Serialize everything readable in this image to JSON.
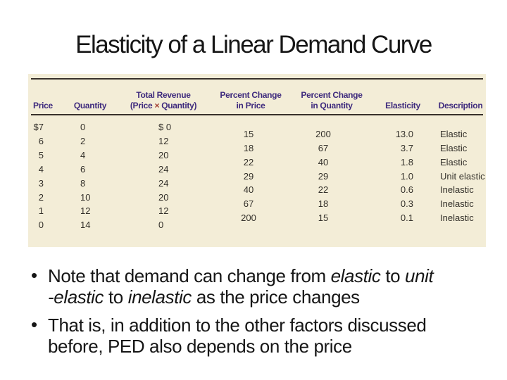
{
  "title": "Elasticity of a Linear Demand Curve",
  "bullet_char": "•",
  "colors": {
    "panel_bg": "#f3edd7",
    "header_text": "#3e2a7d",
    "times_sign": "#a03a2e",
    "rule": "#38312a",
    "data_text": "#33302a",
    "body_text": "#161616"
  },
  "table": {
    "headers": {
      "price": "Price",
      "quantity": "Quantity",
      "total_revenue_line1": "Total Revenue",
      "total_revenue_line2_pre": "(Price ",
      "total_revenue_times": "×",
      "total_revenue_line2_post": " Quantity)",
      "pct_price_line1": "Percent Change",
      "pct_price_line2": "in Price",
      "pct_qty_line1": "Percent Change",
      "pct_qty_line2": "in Quantity",
      "elasticity": "Elasticity",
      "description": "Description"
    },
    "price": [
      "$7",
      "6",
      "5",
      "4",
      "3",
      "2",
      "1",
      "0"
    ],
    "quantity": [
      "0",
      "2",
      "4",
      "6",
      "8",
      "10",
      "12",
      "14"
    ],
    "total_revenue": [
      "$ 0",
      "12",
      "20",
      "24",
      "24",
      "20",
      "12",
      "0"
    ],
    "pct_change_price": [
      "15",
      "18",
      "22",
      "29",
      "40",
      "67",
      "200"
    ],
    "pct_change_quantity": [
      "200",
      "67",
      "40",
      "29",
      "22",
      "18",
      "15"
    ],
    "elasticity": [
      "13.0",
      "3.7",
      "1.8",
      "1.0",
      "0.6",
      "0.3",
      "0.1"
    ],
    "description": [
      "Elastic",
      "Elastic",
      "Elastic",
      "Unit elastic",
      "Inelastic",
      "Inelastic",
      "Inelastic"
    ]
  },
  "bullets": [
    {
      "parts": [
        {
          "t": "Note that demand can change from "
        },
        {
          "t": "elastic",
          "i": true
        },
        {
          "t": " to "
        },
        {
          "t": "unit",
          "i": true
        },
        {
          "br": true
        },
        {
          "t": "-elastic",
          "i": true
        },
        {
          "t": " to "
        },
        {
          "t": "inelastic",
          "i": true
        },
        {
          "t": " as the price changes"
        }
      ]
    },
    {
      "parts": [
        {
          "t": "That is, in addition to the other factors discussed"
        },
        {
          "br": true
        },
        {
          "t": "before, PED also depends on the price"
        }
      ]
    }
  ]
}
